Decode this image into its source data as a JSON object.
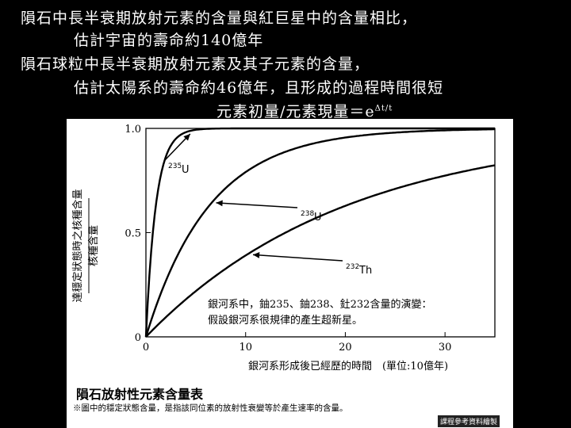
{
  "lines": {
    "l1": "隕石中長半衰期放射元素的含量與紅巨星中的含量相比，",
    "l2": "估計宇宙的壽命約140億年",
    "l3": "隕石球粒中長半衰期放射元素及其子元素的含量，",
    "l4": "估計太陽系的壽命約46億年，且形成的過程時間很短",
    "formula_prefix": "元素初量/元素現量＝e",
    "formula_exp": "Δt/t"
  },
  "figure": {
    "ylabel_line1": "核種含量",
    "ylabel_line2": "達穩定狀態時之核種含量",
    "xlabel": "銀河系形成後已經歷的時間　(單位:10億年)",
    "annotation_line1": "銀河系中，鈾235、鈾238、釷232含量的演變：",
    "annotation_line2": "假設銀河系很規律的產生超新星。",
    "caption_title": "隕石放射性元素含量表",
    "caption_note": "※圖中的穩定狀態含量，是指該同位素的放射性衰變等於產生速率的含量。",
    "credit": "課程參考資料繪製"
  },
  "chart_data": {
    "type": "line",
    "xlim": [
      0,
      35
    ],
    "ylim": [
      0,
      1.0
    ],
    "x_ticks": [
      "0",
      "10",
      "20",
      "30"
    ],
    "y_ticks": [
      "0",
      "0.5",
      "1.0"
    ],
    "series": [
      {
        "name": "235U",
        "mass": "235",
        "symbol": "U",
        "tau": 1.0
      },
      {
        "name": "238U",
        "mass": "238",
        "symbol": "U",
        "tau": 6.4
      },
      {
        "name": "232Th",
        "mass": "232",
        "symbol": "Th",
        "tau": 20.2
      }
    ],
    "line_color": "#000000"
  }
}
